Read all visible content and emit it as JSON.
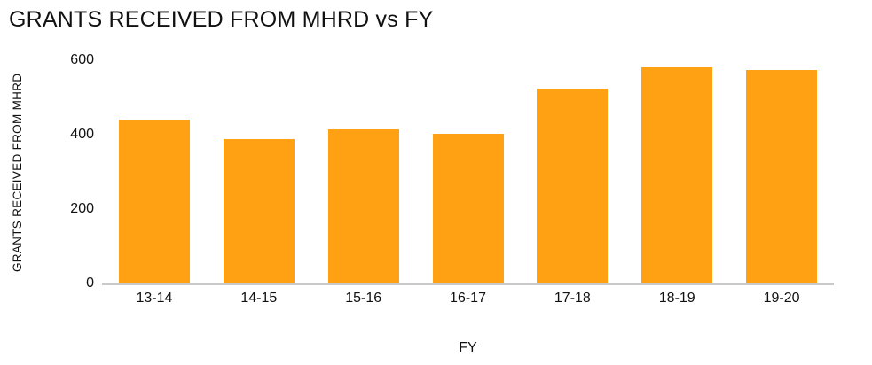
{
  "chart_data": {
    "type": "bar",
    "title": "GRANTS RECEIVED FROM MHRD vs FY",
    "xlabel": "FY",
    "ylabel": "GRANTS RECEIVED FROM MHRD",
    "categories": [
      "13-14",
      "14-15",
      "15-16",
      "16-17",
      "17-18",
      "18-19",
      "19-20"
    ],
    "values": [
      440,
      387,
      415,
      403,
      525,
      580,
      574
    ],
    "ylim": [
      0,
      600
    ],
    "yticks": [
      0,
      200,
      400,
      600
    ],
    "bar_color": "#ffa113",
    "axis_line_color": "#c9c9c9",
    "grid": false,
    "legend": false
  }
}
